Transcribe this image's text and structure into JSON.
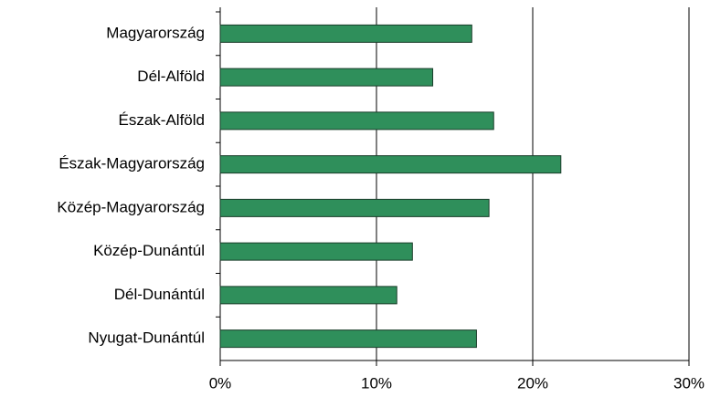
{
  "chart_data": {
    "type": "bar",
    "orientation": "horizontal",
    "categories": [
      "Magyarország",
      "Dél-Alföld",
      "Észak-Alföld",
      "Észak-Magyarország",
      "Közép-Magyarország",
      "Közép-Dunántúl",
      "Dél-Dunántúl",
      "Nyugat-Dunántúl"
    ],
    "values": [
      16.1,
      13.6,
      17.5,
      21.8,
      17.2,
      12.3,
      11.3,
      16.4
    ],
    "color": "#2f8f5b",
    "xlim": [
      0,
      30
    ],
    "xticks": [
      {
        "value": 0,
        "label": "0%"
      },
      {
        "value": 10,
        "label": "10%"
      },
      {
        "value": 20,
        "label": "20%"
      },
      {
        "value": 30,
        "label": "30%"
      }
    ],
    "grid": true
  }
}
